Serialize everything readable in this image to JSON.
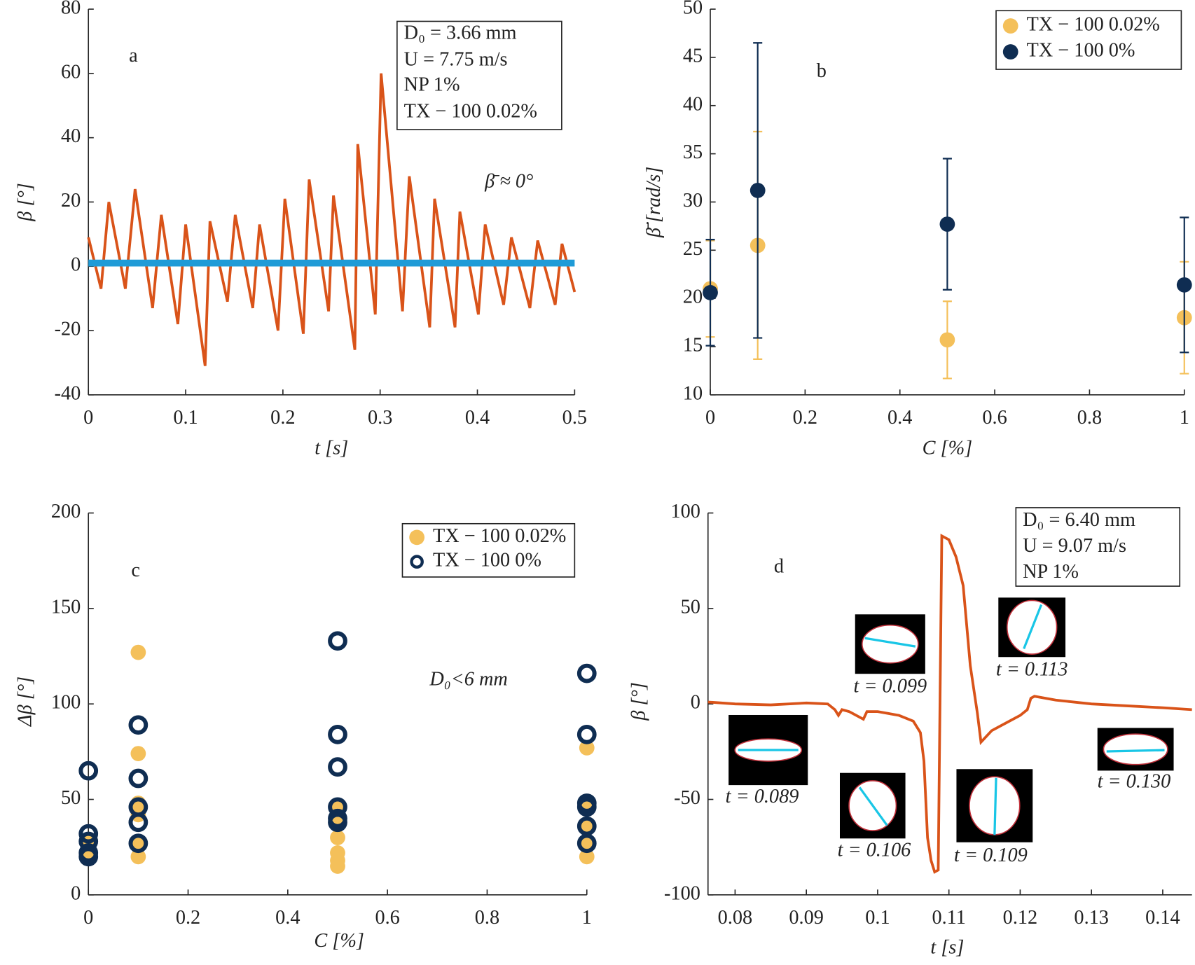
{
  "chart_data": [
    {
      "type": "line",
      "xlabel": "t [s]",
      "ylabel": "β [°]",
      "xlim": [
        0,
        0.5
      ],
      "ylim": [
        -40,
        80
      ],
      "xticks": [
        0,
        0.1,
        0.2,
        0.3,
        0.4,
        0.5
      ],
      "yticks": [
        -40,
        -20,
        0,
        20,
        40,
        60,
        80
      ],
      "series": [
        {
          "color": "#d95319",
          "x": [
            0,
            0.013,
            0.021,
            0.038,
            0.048,
            0.066,
            0.075,
            0.092,
            0.1,
            0.12,
            0.125,
            0.143,
            0.151,
            0.169,
            0.176,
            0.195,
            0.202,
            0.221,
            0.227,
            0.247,
            0.252,
            0.274,
            0.277,
            0.295,
            0.301,
            0.323,
            0.33,
            0.351,
            0.356,
            0.377,
            0.382,
            0.401,
            0.408,
            0.427,
            0.435,
            0.454,
            0.462,
            0.48,
            0.487,
            0.5
          ],
          "values": [
            9,
            -7,
            20,
            -7,
            24,
            -13,
            16,
            -18,
            13,
            -31,
            14,
            -11,
            16,
            -13,
            13,
            -20,
            21,
            -21,
            27,
            -14,
            22,
            -26,
            38,
            -15,
            60,
            -14,
            28,
            -19,
            21,
            -19,
            17,
            -15,
            13,
            -12,
            9,
            -13,
            8,
            -12,
            7,
            -8
          ]
        },
        {
          "color": "#1f9bd7",
          "x": [
            0,
            0.5
          ],
          "values": [
            1,
            1
          ]
        }
      ],
      "annotations": [
        "a",
        "β̄ ≈  0°"
      ],
      "textbox": [
        "D₀ = 3.66 mm",
        "U = 7.75 m/s",
        "NP  1%",
        "TX − 100  0.02%"
      ]
    },
    {
      "type": "errorbar",
      "xlabel": "C [%]",
      "ylabel": "β̇̄ [rad/s]",
      "xlim": [
        0,
        1
      ],
      "ylim": [
        10,
        50
      ],
      "xticks": [
        0,
        0.2,
        0.4,
        0.6,
        0.8,
        1
      ],
      "yticks": [
        10,
        15,
        20,
        25,
        30,
        35,
        40,
        45,
        50
      ],
      "series": [
        {
          "name": "TX − 100 0.02%",
          "color": "#f4c05a",
          "x": [
            0,
            0.1,
            0.5,
            1
          ],
          "values": [
            21,
            25.5,
            15.7,
            18
          ],
          "errors": [
            5,
            11.8,
            4,
            5.8
          ]
        },
        {
          "name": "TX − 100 0%",
          "color": "#0f2d52",
          "x": [
            0,
            0.1,
            0.5,
            1
          ],
          "values": [
            20.6,
            31.2,
            27.7,
            21.4
          ],
          "errors": [
            5.5,
            15.3,
            6.8,
            7
          ]
        }
      ],
      "annotations": [
        "b"
      ]
    },
    {
      "type": "scatter",
      "xlabel": "C [%]",
      "ylabel": "Δβ [°]",
      "xlim": [
        0,
        1
      ],
      "ylim": [
        0,
        200
      ],
      "xticks": [
        0,
        0.2,
        0.4,
        0.6,
        0.8,
        1
      ],
      "yticks": [
        0,
        50,
        100,
        150,
        200
      ],
      "series": [
        {
          "name": "TX − 100 0.02%",
          "color": "#f4c05a",
          "marker": "filled",
          "x": [
            0,
            0,
            0,
            0.1,
            0.1,
            0.1,
            0.1,
            0.1,
            0.1,
            0.5,
            0.5,
            0.5,
            0.5,
            0.5,
            0.5,
            1,
            1,
            1,
            1,
            1
          ],
          "values": [
            22,
            28,
            25,
            127,
            74,
            48,
            42,
            27,
            20,
            45,
            40,
            30,
            22,
            18,
            15,
            77,
            45,
            35,
            28,
            20
          ]
        },
        {
          "name": "TX − 100 0%",
          "color": "#0f2d52",
          "marker": "open",
          "x": [
            0,
            0,
            0,
            0,
            0,
            0.1,
            0.1,
            0.1,
            0.1,
            0.1,
            0.5,
            0.5,
            0.5,
            0.5,
            0.5,
            0.5,
            1,
            1,
            1,
            1,
            1,
            1
          ],
          "values": [
            65,
            32,
            28,
            22,
            20,
            89,
            61,
            46,
            38,
            27,
            133,
            84,
            67,
            46,
            40,
            38,
            116,
            84,
            48,
            46,
            36,
            27
          ]
        }
      ],
      "annotations": [
        "c",
        "D₀<6 mm"
      ]
    },
    {
      "type": "line",
      "xlabel": "t [s]",
      "ylabel": "β [°]",
      "xlim": [
        0.0762,
        0.1441
      ],
      "ylim": [
        -100,
        100
      ],
      "xticks": [
        0.08,
        0.09,
        0.1,
        0.11,
        0.12,
        0.13,
        0.14
      ],
      "yticks": [
        -100,
        -50,
        0,
        50,
        100
      ],
      "series": [
        {
          "color": "#d95319",
          "x": [
            0.0762,
            0.08,
            0.085,
            0.09,
            0.093,
            0.094,
            0.0945,
            0.095,
            0.096,
            0.098,
            0.0985,
            0.1,
            0.103,
            0.105,
            0.106,
            0.1065,
            0.107,
            0.1075,
            0.108,
            0.1085,
            0.109,
            0.11,
            0.111,
            0.112,
            0.113,
            0.114,
            0.1145,
            0.115,
            0.116,
            0.118,
            0.12,
            0.121,
            0.1215,
            0.122,
            0.125,
            0.13,
            0.135,
            0.14,
            0.1441
          ],
          "values": [
            1,
            0,
            -0.5,
            0.5,
            0,
            -3,
            -6,
            -3,
            -4,
            -8,
            -4,
            -4,
            -6,
            -9,
            -15,
            -30,
            -70,
            -82,
            -88,
            -87,
            88,
            86,
            77,
            62,
            20,
            -5,
            -20,
            -18,
            -14,
            -10,
            -6,
            -3,
            3,
            4,
            2,
            0,
            -1,
            -2,
            -3
          ]
        }
      ],
      "annotations": [
        "d"
      ],
      "textbox": [
        "D₀ = 6.40 mm",
        "U = 9.07 m/s",
        "NP  1%"
      ],
      "inset_labels": [
        "t = 0.089",
        "t = 0.099",
        "t = 0.106",
        "t = 0.109",
        "t = 0.113",
        "t = 0.130"
      ]
    }
  ]
}
